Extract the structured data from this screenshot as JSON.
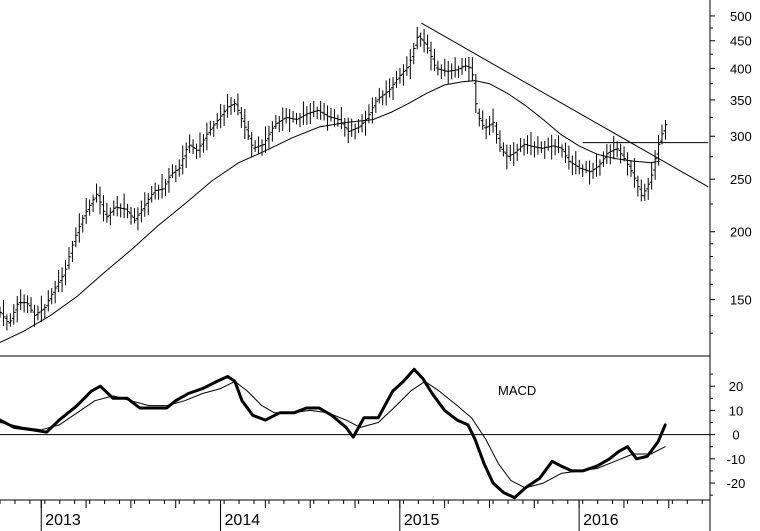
{
  "chart_data": [
    {
      "type": "ohlc",
      "panel": "price",
      "title": "",
      "xlabel": "",
      "ylabel": "",
      "yscale": "log",
      "ylim": [
        118,
        535
      ],
      "xlim": [
        2012.77,
        2016.73
      ],
      "grid": false,
      "y_ticks": [
        150,
        200,
        250,
        300,
        350,
        400,
        450,
        500
      ],
      "x_ticks": [
        {
          "x": 2013.0,
          "label": "2013"
        },
        {
          "x": 2014.0,
          "label": "2014"
        },
        {
          "x": 2015.0,
          "label": "2015"
        },
        {
          "x": 2016.0,
          "label": "2016"
        }
      ],
      "price_path": [
        [
          2012.77,
          142
        ],
        [
          2012.82,
          135
        ],
        [
          2012.87,
          148
        ],
        [
          2012.92,
          148
        ],
        [
          2012.96,
          140
        ],
        [
          2013.02,
          145
        ],
        [
          2013.08,
          158
        ],
        [
          2013.13,
          168
        ],
        [
          2013.18,
          192
        ],
        [
          2013.24,
          215
        ],
        [
          2013.31,
          235
        ],
        [
          2013.36,
          212
        ],
        [
          2013.41,
          222
        ],
        [
          2013.47,
          220
        ],
        [
          2013.52,
          210
        ],
        [
          2013.57,
          222
        ],
        [
          2013.63,
          238
        ],
        [
          2013.68,
          240
        ],
        [
          2013.72,
          255
        ],
        [
          2013.77,
          262
        ],
        [
          2013.82,
          290
        ],
        [
          2013.87,
          282
        ],
        [
          2013.93,
          305
        ],
        [
          2013.98,
          320
        ],
        [
          2014.04,
          340
        ],
        [
          2014.08,
          345
        ],
        [
          2014.13,
          315
        ],
        [
          2014.18,
          285
        ],
        [
          2014.24,
          290
        ],
        [
          2014.3,
          315
        ],
        [
          2014.36,
          325
        ],
        [
          2014.42,
          322
        ],
        [
          2014.48,
          330
        ],
        [
          2014.54,
          335
        ],
        [
          2014.6,
          326
        ],
        [
          2014.66,
          322
        ],
        [
          2014.71,
          306
        ],
        [
          2014.77,
          312
        ],
        [
          2014.82,
          325
        ],
        [
          2014.87,
          350
        ],
        [
          2014.94,
          365
        ],
        [
          2014.99,
          385
        ],
        [
          2015.05,
          405
        ],
        [
          2015.1,
          460
        ],
        [
          2015.15,
          440
        ],
        [
          2015.2,
          400
        ],
        [
          2015.26,
          395
        ],
        [
          2015.32,
          398
        ],
        [
          2015.36,
          405
        ],
        [
          2015.4,
          400
        ],
        [
          2015.43,
          330
        ],
        [
          2015.47,
          310
        ],
        [
          2015.52,
          318
        ],
        [
          2015.56,
          285
        ],
        [
          2015.6,
          275
        ],
        [
          2015.64,
          280
        ],
        [
          2015.69,
          290
        ],
        [
          2015.74,
          287
        ],
        [
          2015.79,
          285
        ],
        [
          2015.85,
          288
        ],
        [
          2015.9,
          285
        ],
        [
          2015.94,
          270
        ],
        [
          2016.0,
          262
        ],
        [
          2016.06,
          258
        ],
        [
          2016.11,
          265
        ],
        [
          2016.16,
          280
        ],
        [
          2016.21,
          285
        ],
        [
          2016.26,
          270
        ],
        [
          2016.3,
          255
        ],
        [
          2016.35,
          232
        ],
        [
          2016.4,
          250
        ],
        [
          2016.44,
          288
        ],
        [
          2016.48,
          315
        ],
        [
          2016.5,
          315
        ]
      ],
      "moving_average": [
        [
          2012.77,
          125
        ],
        [
          2012.9,
          131
        ],
        [
          2013.05,
          140
        ],
        [
          2013.2,
          152
        ],
        [
          2013.35,
          168
        ],
        [
          2013.5,
          185
        ],
        [
          2013.65,
          205
        ],
        [
          2013.8,
          225
        ],
        [
          2013.95,
          248
        ],
        [
          2014.1,
          268
        ],
        [
          2014.25,
          282
        ],
        [
          2014.4,
          298
        ],
        [
          2014.55,
          312
        ],
        [
          2014.7,
          318
        ],
        [
          2014.85,
          322
        ],
        [
          2014.95,
          332
        ],
        [
          2015.05,
          345
        ],
        [
          2015.15,
          360
        ],
        [
          2015.25,
          373
        ],
        [
          2015.35,
          378
        ],
        [
          2015.42,
          380
        ],
        [
          2015.5,
          375
        ],
        [
          2015.6,
          360
        ],
        [
          2015.7,
          342
        ],
        [
          2015.8,
          322
        ],
        [
          2015.9,
          302
        ],
        [
          2016.0,
          288
        ],
        [
          2016.1,
          278
        ],
        [
          2016.2,
          273
        ],
        [
          2016.3,
          270
        ],
        [
          2016.4,
          268
        ],
        [
          2016.45,
          270
        ]
      ],
      "trendline": [
        [
          2015.12,
          485
        ],
        [
          2016.72,
          242
        ]
      ],
      "resistance_line": [
        [
          2016.02,
          292
        ],
        [
          2016.72,
          292
        ]
      ]
    },
    {
      "type": "line",
      "panel": "macd",
      "label": "MACD",
      "ylim": [
        -27,
        30
      ],
      "y_ticks": [
        20,
        10,
        0,
        -10,
        -20
      ],
      "zero_line": true,
      "series": [
        {
          "role": "macd",
          "points": [
            [
              2012.77,
              6
            ],
            [
              2012.85,
              3
            ],
            [
              2012.95,
              2
            ],
            [
              2013.03,
              1
            ],
            [
              2013.1,
              6
            ],
            [
              2013.2,
              12
            ],
            [
              2013.28,
              18
            ],
            [
              2013.33,
              20
            ],
            [
              2013.4,
              15
            ],
            [
              2013.48,
              15
            ],
            [
              2013.55,
              11
            ],
            [
              2013.62,
              11
            ],
            [
              2013.7,
              11
            ],
            [
              2013.75,
              14
            ],
            [
              2013.82,
              17
            ],
            [
              2013.9,
              19
            ],
            [
              2013.98,
              22
            ],
            [
              2014.04,
              24
            ],
            [
              2014.08,
              22
            ],
            [
              2014.12,
              14
            ],
            [
              2014.18,
              8
            ],
            [
              2014.25,
              6
            ],
            [
              2014.33,
              9
            ],
            [
              2014.41,
              9
            ],
            [
              2014.48,
              11
            ],
            [
              2014.55,
              11
            ],
            [
              2014.62,
              8
            ],
            [
              2014.7,
              3
            ],
            [
              2014.74,
              -1
            ],
            [
              2014.8,
              7
            ],
            [
              2014.88,
              7
            ],
            [
              2014.96,
              18
            ],
            [
              2015.02,
              22
            ],
            [
              2015.08,
              27
            ],
            [
              2015.13,
              23
            ],
            [
              2015.18,
              17
            ],
            [
              2015.25,
              10
            ],
            [
              2015.32,
              6
            ],
            [
              2015.38,
              4
            ],
            [
              2015.42,
              -2
            ],
            [
              2015.47,
              -12
            ],
            [
              2015.52,
              -20
            ],
            [
              2015.58,
              -24
            ],
            [
              2015.64,
              -26
            ],
            [
              2015.7,
              -22
            ],
            [
              2015.78,
              -18
            ],
            [
              2015.85,
              -11
            ],
            [
              2015.9,
              -13
            ],
            [
              2015.96,
              -15
            ],
            [
              2016.02,
              -15
            ],
            [
              2016.1,
              -13
            ],
            [
              2016.17,
              -10
            ],
            [
              2016.22,
              -7
            ],
            [
              2016.27,
              -5
            ],
            [
              2016.32,
              -10
            ],
            [
              2016.38,
              -9
            ],
            [
              2016.44,
              -3
            ],
            [
              2016.48,
              4
            ]
          ]
        },
        {
          "role": "signal",
          "points": [
            [
              2012.77,
              5
            ],
            [
              2012.9,
              3
            ],
            [
              2013.0,
              2
            ],
            [
              2013.1,
              4
            ],
            [
              2013.2,
              9
            ],
            [
              2013.3,
              14
            ],
            [
              2013.4,
              16
            ],
            [
              2013.5,
              14
            ],
            [
              2013.6,
              12
            ],
            [
              2013.7,
              12
            ],
            [
              2013.8,
              14
            ],
            [
              2013.9,
              17
            ],
            [
              2014.0,
              19
            ],
            [
              2014.08,
              22
            ],
            [
              2014.15,
              18
            ],
            [
              2014.23,
              12
            ],
            [
              2014.3,
              9
            ],
            [
              2014.4,
              9
            ],
            [
              2014.5,
              10
            ],
            [
              2014.6,
              9
            ],
            [
              2014.7,
              6
            ],
            [
              2014.78,
              3
            ],
            [
              2014.88,
              5
            ],
            [
              2014.98,
              12
            ],
            [
              2015.06,
              18
            ],
            [
              2015.14,
              22
            ],
            [
              2015.22,
              18
            ],
            [
              2015.32,
              12
            ],
            [
              2015.4,
              7
            ],
            [
              2015.48,
              -2
            ],
            [
              2015.55,
              -12
            ],
            [
              2015.62,
              -19
            ],
            [
              2015.7,
              -22
            ],
            [
              2015.8,
              -20
            ],
            [
              2015.9,
              -16
            ],
            [
              2016.0,
              -15
            ],
            [
              2016.1,
              -14
            ],
            [
              2016.2,
              -11
            ],
            [
              2016.3,
              -8
            ],
            [
              2016.4,
              -8
            ],
            [
              2016.48,
              -5
            ]
          ]
        }
      ]
    }
  ]
}
